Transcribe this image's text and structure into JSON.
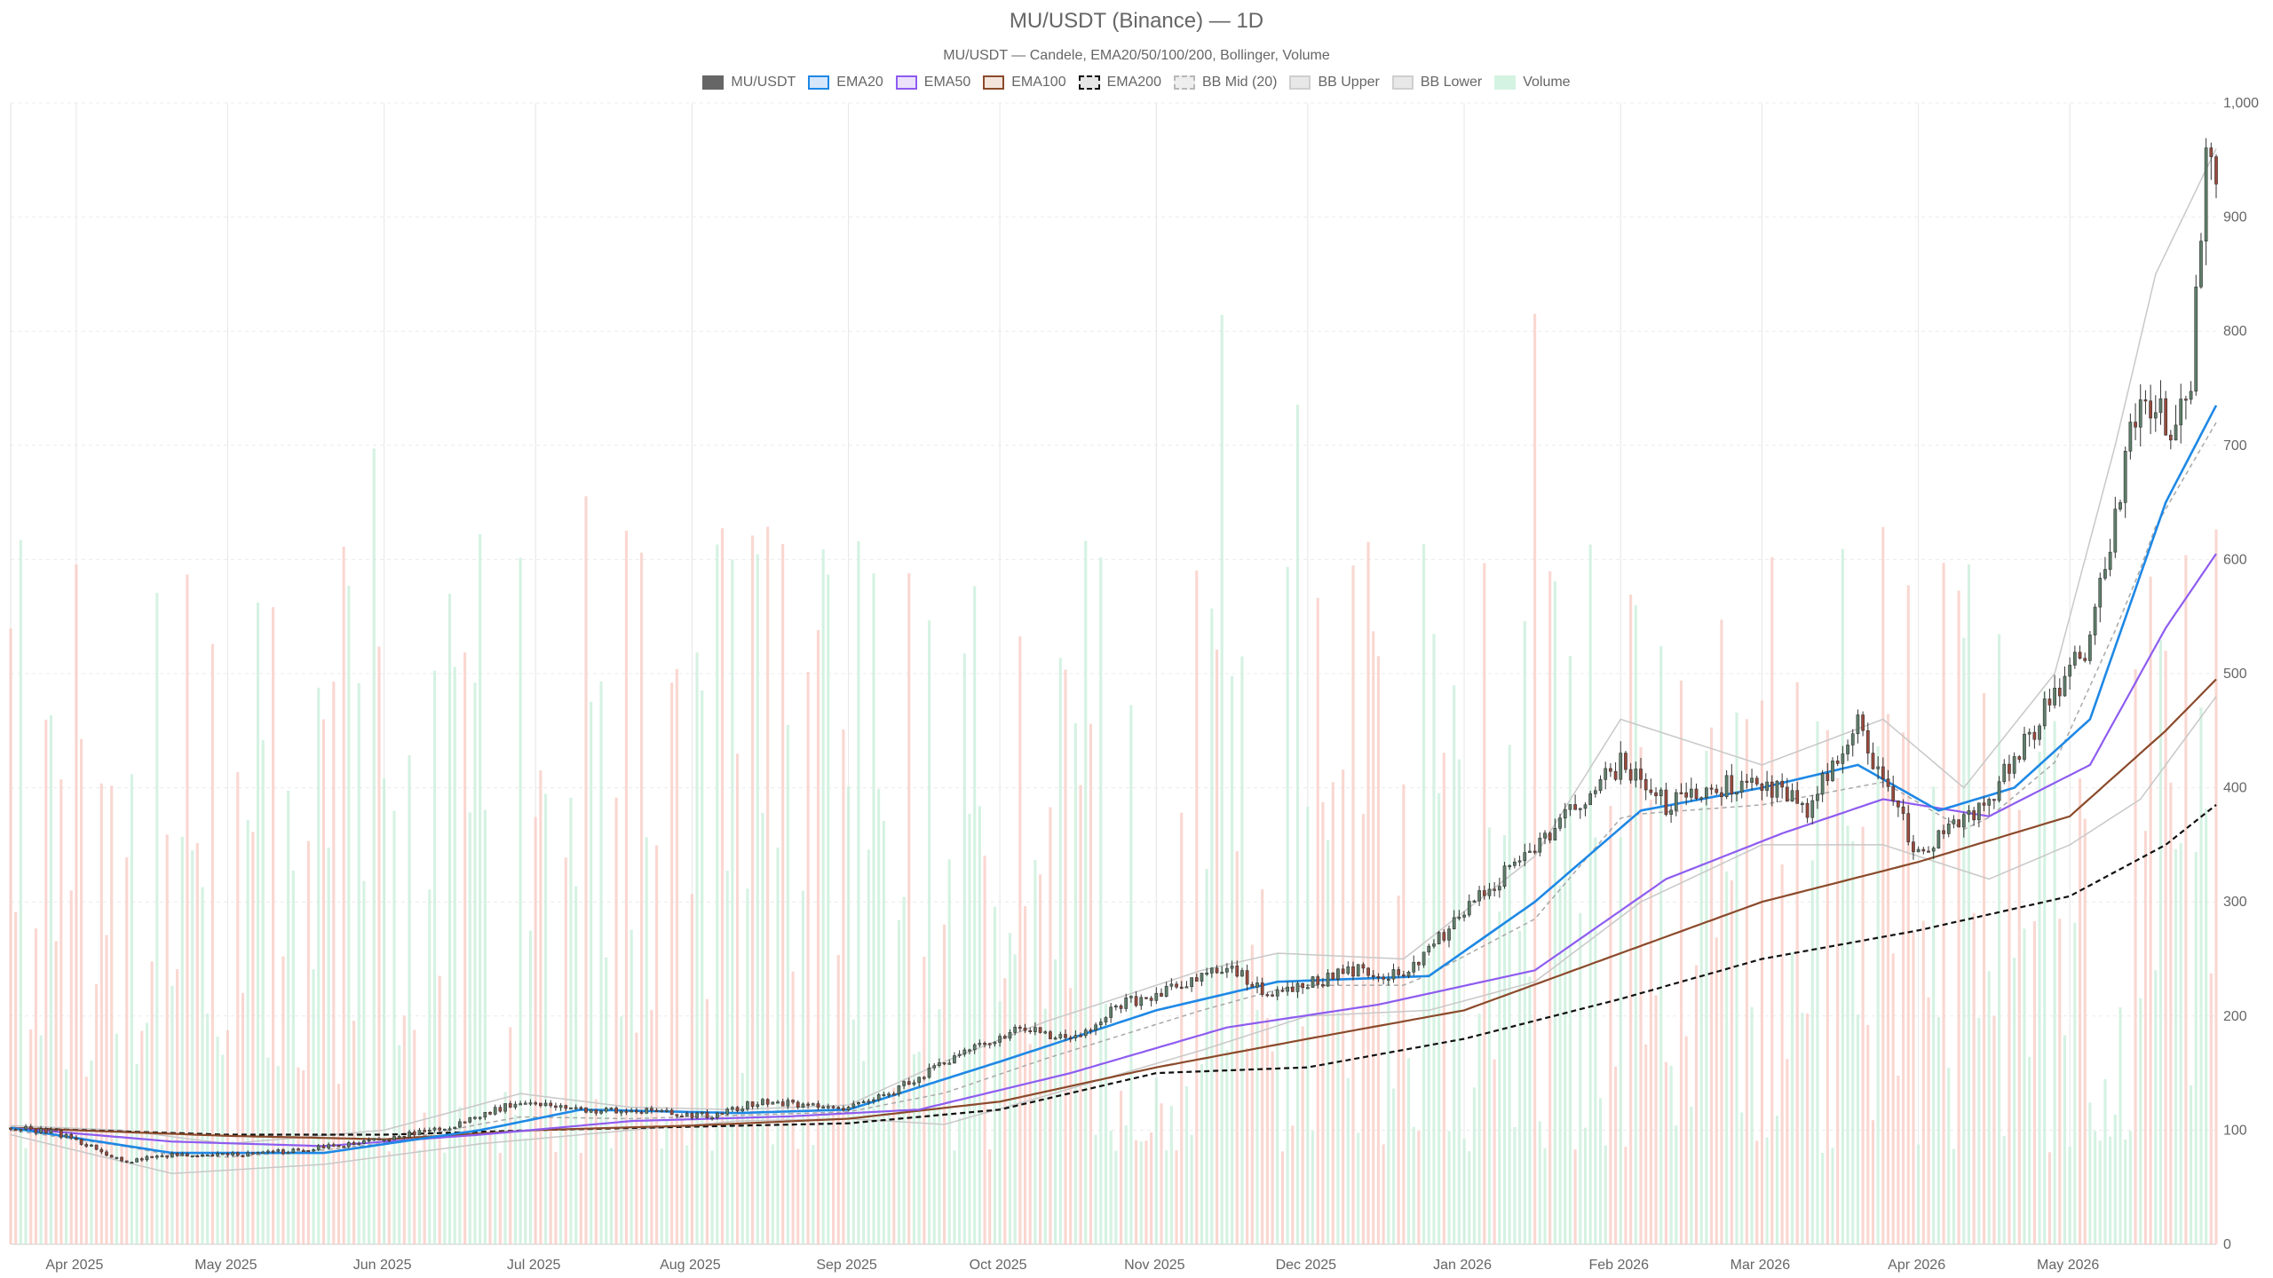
{
  "chart_data": {
    "type": "candlestick",
    "title": "MU/USDT (Binance) — 1D",
    "subtitle": "MU/USDT — Candele, EMA20/50/100/200, Bollinger, Volume",
    "legend": [
      {
        "label": "MU/USDT",
        "fill": "#666666",
        "border": "#666666",
        "dash": false
      },
      {
        "label": "EMA20",
        "fill": "#d6e6fb",
        "border": "#1e88e5",
        "dash": false
      },
      {
        "label": "EMA50",
        "fill": "#ece3fb",
        "border": "#8e5cf0",
        "dash": false
      },
      {
        "label": "EMA100",
        "fill": "#f3e5dc",
        "border": "#8b4a2b",
        "dash": false
      },
      {
        "label": "EMA200",
        "fill": "#e6e6e6",
        "border": "#111111",
        "dash": true
      },
      {
        "label": "BB Mid (20)",
        "fill": "#eeeeee",
        "border": "#b8b8b8",
        "dash": true
      },
      {
        "label": "BB Upper",
        "fill": "#e8e8e8",
        "border": "#cfcfcf",
        "dash": false
      },
      {
        "label": "BB Lower",
        "fill": "#e8e8e8",
        "border": "#cfcfcf",
        "dash": false
      },
      {
        "label": "Volume",
        "fill": "#d4f3e2",
        "border": "#d4f3e2",
        "dash": false
      }
    ],
    "y_axis": {
      "min": 0,
      "max": 1000,
      "ticks": [
        0,
        100,
        200,
        300,
        400,
        500,
        600,
        700,
        800,
        900,
        1000
      ],
      "tick_labels": [
        "0",
        "100",
        "200",
        "300",
        "400",
        "500",
        "600",
        "700",
        "800",
        "900",
        "1,000"
      ],
      "grid": true,
      "position": "right"
    },
    "x_axis": {
      "start": "2025-03-19",
      "end": "2026-05-30",
      "tick_labels": [
        "Apr 2025",
        "May 2025",
        "Jun 2025",
        "Jul 2025",
        "Aug 2025",
        "Sep 2025",
        "Oct 2025",
        "Nov 2025",
        "Dec 2025",
        "Jan 2026",
        "Feb 2026",
        "Mar 2026",
        "Apr 2026",
        "May 2026"
      ],
      "tick_dates": [
        "2025-04-01",
        "2025-05-01",
        "2025-06-01",
        "2025-07-01",
        "2025-08-01",
        "2025-09-01",
        "2025-10-01",
        "2025-11-01",
        "2025-12-01",
        "2026-01-01",
        "2026-02-01",
        "2026-03-01",
        "2026-04-01",
        "2026-05-01"
      ]
    },
    "colors": {
      "up": "#5e7f6a",
      "down": "#9a4a3c",
      "vol_up": "#c7eed8",
      "vol_down": "#f8c9c2",
      "ema20": "#1e88e5",
      "ema50": "#8e5cf0",
      "ema100": "#8b4a2b",
      "ema200": "#111111",
      "bb": "#c8c8c8",
      "bb_mid": "#a8a8a8",
      "grid": "#e8e8e8"
    },
    "close_anchors": [
      [
        "2025-03-19",
        102
      ],
      [
        "2025-03-28",
        98
      ],
      [
        "2025-04-05",
        84
      ],
      [
        "2025-04-10",
        72
      ],
      [
        "2025-04-18",
        78
      ],
      [
        "2025-05-01",
        78
      ],
      [
        "2025-05-15",
        82
      ],
      [
        "2025-06-01",
        92
      ],
      [
        "2025-06-15",
        104
      ],
      [
        "2025-06-28",
        126
      ],
      [
        "2025-07-10",
        118
      ],
      [
        "2025-07-25",
        116
      ],
      [
        "2025-08-05",
        112
      ],
      [
        "2025-08-15",
        126
      ],
      [
        "2025-08-30",
        118
      ],
      [
        "2025-09-10",
        135
      ],
      [
        "2025-09-25",
        170
      ],
      [
        "2025-10-05",
        190
      ],
      [
        "2025-10-15",
        178
      ],
      [
        "2025-10-25",
        210
      ],
      [
        "2025-11-05",
        225
      ],
      [
        "2025-11-15",
        245
      ],
      [
        "2025-11-22",
        220
      ],
      [
        "2025-12-01",
        228
      ],
      [
        "2025-12-10",
        240
      ],
      [
        "2025-12-20",
        235
      ],
      [
        "2026-01-01",
        290
      ],
      [
        "2026-01-10",
        330
      ],
      [
        "2026-01-20",
        370
      ],
      [
        "2026-02-01",
        420
      ],
      [
        "2026-02-10",
        385
      ],
      [
        "2026-02-20",
        400
      ],
      [
        "2026-03-01",
        405
      ],
      [
        "2026-03-10",
        380
      ],
      [
        "2026-03-20",
        455
      ],
      [
        "2026-03-28",
        380
      ],
      [
        "2026-04-01",
        340
      ],
      [
        "2026-04-08",
        365
      ],
      [
        "2026-04-15",
        390
      ],
      [
        "2026-04-25",
        460
      ],
      [
        "2026-05-05",
        530
      ],
      [
        "2026-05-10",
        640
      ],
      [
        "2026-05-14",
        730
      ],
      [
        "2026-05-18",
        740
      ],
      [
        "2026-05-21",
        700
      ],
      [
        "2026-05-25",
        760
      ],
      [
        "2026-05-28",
        940
      ],
      [
        "2026-05-30",
        920
      ]
    ],
    "ema20_points": [
      [
        "2025-03-19",
        102
      ],
      [
        "2025-04-20",
        80
      ],
      [
        "2025-05-20",
        80
      ],
      [
        "2025-06-20",
        100
      ],
      [
        "2025-07-10",
        118
      ],
      [
        "2025-08-10",
        115
      ],
      [
        "2025-09-01",
        118
      ],
      [
        "2025-10-01",
        160
      ],
      [
        "2025-11-01",
        205
      ],
      [
        "2025-11-25",
        230
      ],
      [
        "2025-12-25",
        235
      ],
      [
        "2026-01-15",
        300
      ],
      [
        "2026-02-05",
        380
      ],
      [
        "2026-03-01",
        400
      ],
      [
        "2026-03-20",
        420
      ],
      [
        "2026-04-05",
        380
      ],
      [
        "2026-04-20",
        400
      ],
      [
        "2026-05-05",
        460
      ],
      [
        "2026-05-20",
        650
      ],
      [
        "2026-05-30",
        735
      ]
    ],
    "ema50_points": [
      [
        "2025-03-19",
        102
      ],
      [
        "2025-04-20",
        90
      ],
      [
        "2025-05-20",
        86
      ],
      [
        "2025-06-20",
        96
      ],
      [
        "2025-07-20",
        108
      ],
      [
        "2025-08-20",
        112
      ],
      [
        "2025-09-15",
        118
      ],
      [
        "2025-10-15",
        150
      ],
      [
        "2025-11-15",
        190
      ],
      [
        "2025-12-15",
        210
      ],
      [
        "2026-01-15",
        240
      ],
      [
        "2026-02-10",
        320
      ],
      [
        "2026-03-05",
        360
      ],
      [
        "2026-03-25",
        390
      ],
      [
        "2026-04-15",
        375
      ],
      [
        "2026-05-05",
        420
      ],
      [
        "2026-05-20",
        540
      ],
      [
        "2026-05-30",
        605
      ]
    ],
    "ema100_points": [
      [
        "2025-03-19",
        102
      ],
      [
        "2025-05-01",
        95
      ],
      [
        "2025-06-01",
        92
      ],
      [
        "2025-07-01",
        100
      ],
      [
        "2025-08-01",
        104
      ],
      [
        "2025-09-01",
        110
      ],
      [
        "2025-10-01",
        125
      ],
      [
        "2025-11-01",
        155
      ],
      [
        "2025-12-01",
        180
      ],
      [
        "2026-01-01",
        205
      ],
      [
        "2026-02-01",
        255
      ],
      [
        "2026-03-01",
        300
      ],
      [
        "2026-04-01",
        335
      ],
      [
        "2026-05-01",
        375
      ],
      [
        "2026-05-20",
        450
      ],
      [
        "2026-05-30",
        495
      ]
    ],
    "ema200_points": [
      [
        "2025-03-19",
        102
      ],
      [
        "2025-05-01",
        96
      ],
      [
        "2025-06-01",
        96
      ],
      [
        "2025-07-01",
        100
      ],
      [
        "2025-08-01",
        103
      ],
      [
        "2025-09-01",
        106
      ],
      [
        "2025-10-01",
        118
      ],
      [
        "2025-11-01",
        150
      ],
      [
        "2025-12-01",
        155
      ],
      [
        "2026-01-01",
        180
      ],
      [
        "2026-02-01",
        215
      ],
      [
        "2026-03-01",
        250
      ],
      [
        "2026-04-01",
        275
      ],
      [
        "2026-05-01",
        305
      ],
      [
        "2026-05-20",
        350
      ],
      [
        "2026-05-30",
        385
      ]
    ],
    "bb_upper_points": [
      [
        "2025-03-19",
        104
      ],
      [
        "2025-04-10",
        100
      ],
      [
        "2025-05-01",
        88
      ],
      [
        "2025-06-01",
        100
      ],
      [
        "2025-06-28",
        132
      ],
      [
        "2025-07-20",
        120
      ],
      [
        "2025-08-10",
        118
      ],
      [
        "2025-09-01",
        122
      ],
      [
        "2025-09-20",
        160
      ],
      [
        "2025-10-10",
        195
      ],
      [
        "2025-11-10",
        240
      ],
      [
        "2025-11-25",
        255
      ],
      [
        "2025-12-20",
        250
      ],
      [
        "2026-01-15",
        340
      ],
      [
        "2026-02-01",
        460
      ],
      [
        "2026-03-01",
        420
      ],
      [
        "2026-03-25",
        460
      ],
      [
        "2026-04-10",
        400
      ],
      [
        "2026-04-28",
        500
      ],
      [
        "2026-05-10",
        700
      ],
      [
        "2026-05-18",
        850
      ],
      [
        "2026-05-30",
        960
      ]
    ],
    "bb_lower_points": [
      [
        "2025-03-19",
        96
      ],
      [
        "2025-04-20",
        62
      ],
      [
        "2025-05-20",
        70
      ],
      [
        "2025-06-20",
        88
      ],
      [
        "2025-07-20",
        100
      ],
      [
        "2025-08-10",
        108
      ],
      [
        "2025-09-01",
        110
      ],
      [
        "2025-09-20",
        105
      ],
      [
        "2025-10-10",
        130
      ],
      [
        "2025-11-10",
        170
      ],
      [
        "2025-12-01",
        200
      ],
      [
        "2025-12-25",
        205
      ],
      [
        "2026-01-15",
        230
      ],
      [
        "2026-02-05",
        300
      ],
      [
        "2026-03-01",
        350
      ],
      [
        "2026-03-25",
        350
      ],
      [
        "2026-04-15",
        320
      ],
      [
        "2026-05-01",
        350
      ],
      [
        "2026-05-15",
        390
      ],
      [
        "2026-05-30",
        480
      ]
    ]
  }
}
